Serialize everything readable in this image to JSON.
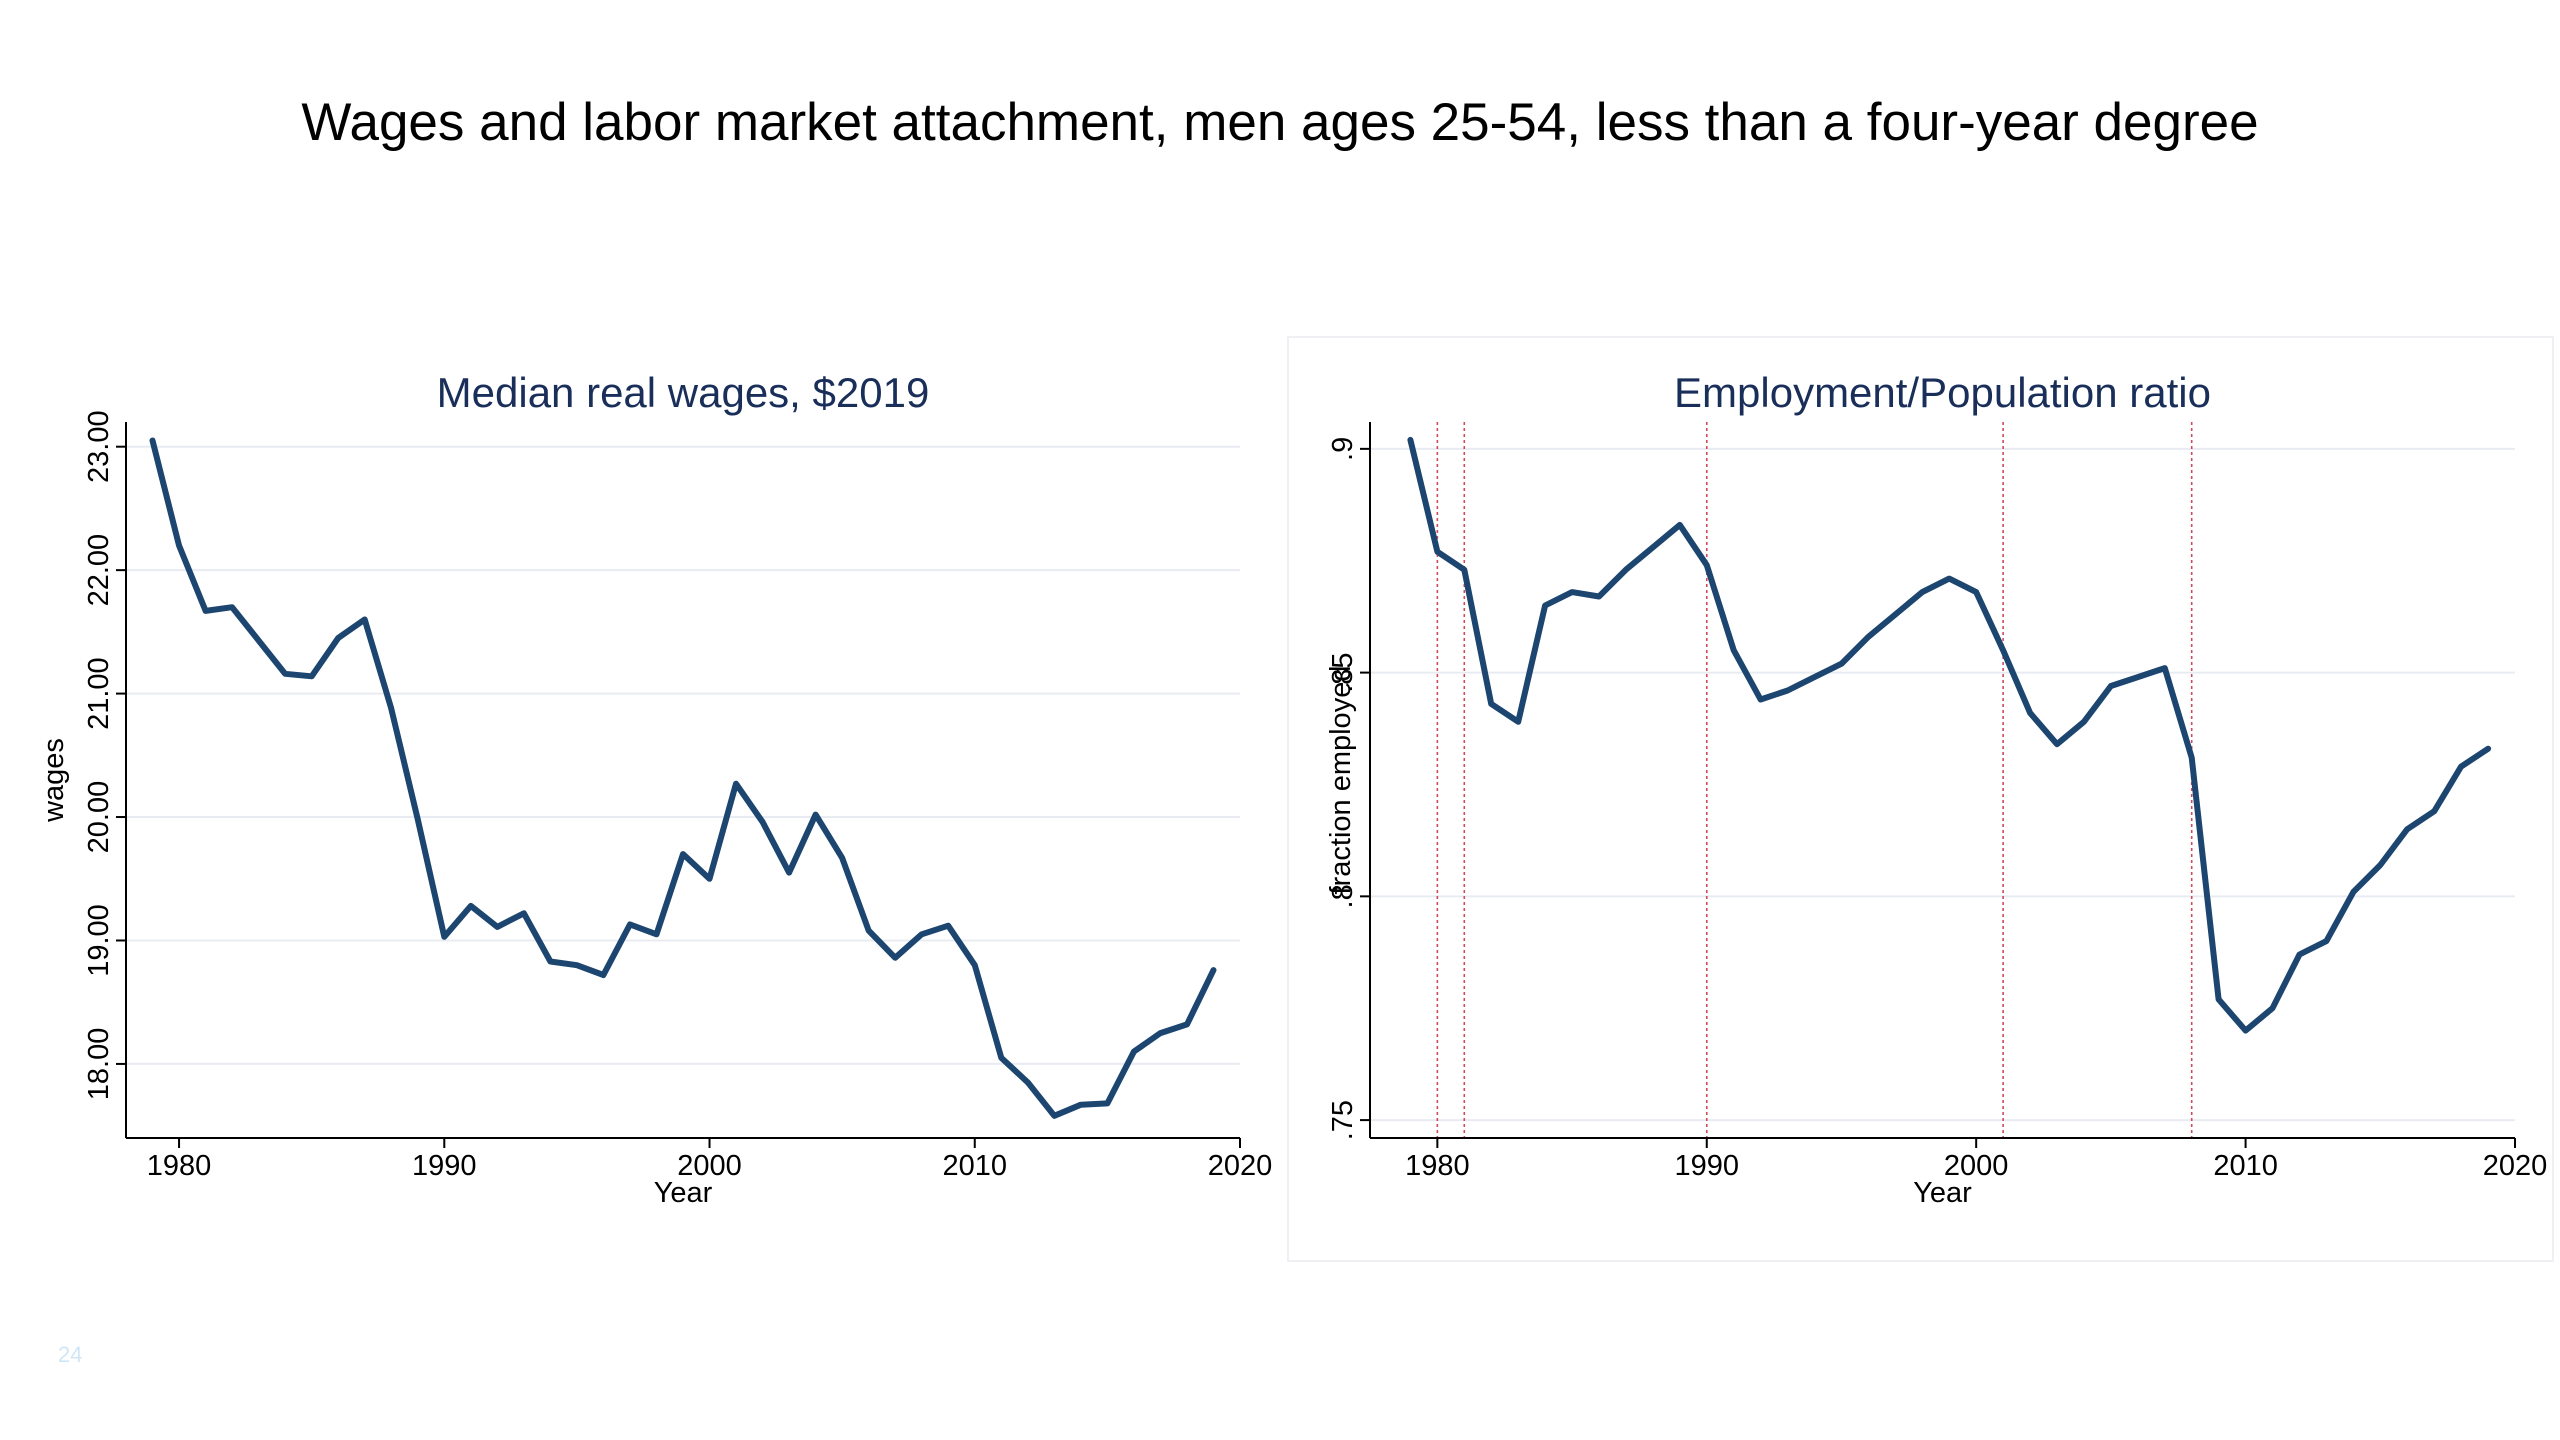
{
  "title": "Wages and labor market attachment, men ages 25-54, less than a four-year degree",
  "page_number": "24",
  "colors": {
    "line": "#1c4570",
    "grid": "#e8ecf2",
    "recession": "#d04a5c",
    "panel_title": "#1a2e5a"
  },
  "chart_data": [
    {
      "type": "line",
      "title": "Median real wages, $2019",
      "xlabel": "Year",
      "ylabel": "wages",
      "xlim": [
        1978,
        2020
      ],
      "ylim": [
        17.4,
        23.2
      ],
      "xticks": [
        1980,
        1990,
        2000,
        2010,
        2020
      ],
      "yticks": [
        18,
        19,
        20,
        21,
        22,
        23
      ],
      "ytick_labels": [
        "18.00",
        "19.00",
        "20.00",
        "21.00",
        "22.00",
        "23.00"
      ],
      "grid": true,
      "x": [
        1979,
        1980,
        1981,
        1982,
        1983,
        1984,
        1985,
        1986,
        1987,
        1988,
        1989,
        1990,
        1991,
        1992,
        1993,
        1994,
        1995,
        1996,
        1997,
        1998,
        1999,
        2000,
        2001,
        2002,
        2003,
        2004,
        2005,
        2006,
        2007,
        2008,
        2009,
        2010,
        2011,
        2012,
        2013,
        2014,
        2015,
        2016,
        2017,
        2018,
        2019
      ],
      "series": [
        {
          "values": [
            23.05,
            22.2,
            21.67,
            21.7,
            21.43,
            21.16,
            21.14,
            21.45,
            21.6,
            20.88,
            19.98,
            19.03,
            19.28,
            19.11,
            19.22,
            18.83,
            18.8,
            18.72,
            19.13,
            19.05,
            19.7,
            19.5,
            20.27,
            19.96,
            19.55,
            20.02,
            19.67,
            19.08,
            18.86,
            19.05,
            19.12,
            18.8,
            18.05,
            17.85,
            17.58,
            17.67,
            17.68,
            18.1,
            18.25,
            18.32,
            18.76
          ]
        }
      ]
    },
    {
      "type": "line",
      "title": "Employment/Population ratio",
      "xlabel": "Year",
      "ylabel": "fraction employed",
      "xlim": [
        1977.5,
        2020
      ],
      "ylim": [
        0.746,
        0.906
      ],
      "xticks": [
        1980,
        1990,
        2000,
        2010,
        2020
      ],
      "yticks": [
        0.75,
        0.8,
        0.85,
        0.9
      ],
      "ytick_labels": [
        ".75",
        ".8",
        ".85",
        ".9"
      ],
      "grid": true,
      "recession_lines": [
        1980,
        1981,
        1990,
        2001,
        2008
      ],
      "x": [
        1979,
        1980,
        1981,
        1982,
        1983,
        1984,
        1985,
        1986,
        1987,
        1988,
        1989,
        1990,
        1991,
        1992,
        1993,
        1994,
        1995,
        1996,
        1997,
        1998,
        1999,
        2000,
        2001,
        2002,
        2003,
        2004,
        2005,
        2006,
        2007,
        2008,
        2009,
        2010,
        2011,
        2012,
        2013,
        2014,
        2015,
        2016,
        2017,
        2018,
        2019
      ],
      "series": [
        {
          "values": [
            0.902,
            0.877,
            0.873,
            0.843,
            0.839,
            0.865,
            0.868,
            0.867,
            0.873,
            0.878,
            0.883,
            0.874,
            0.855,
            0.844,
            0.846,
            0.849,
            0.852,
            0.858,
            0.863,
            0.868,
            0.871,
            0.868,
            0.855,
            0.841,
            0.834,
            0.839,
            0.847,
            0.849,
            0.851,
            0.831,
            0.777,
            0.77,
            0.775,
            0.787,
            0.79,
            0.801,
            0.807,
            0.815,
            0.819,
            0.829,
            0.833
          ]
        }
      ]
    }
  ]
}
